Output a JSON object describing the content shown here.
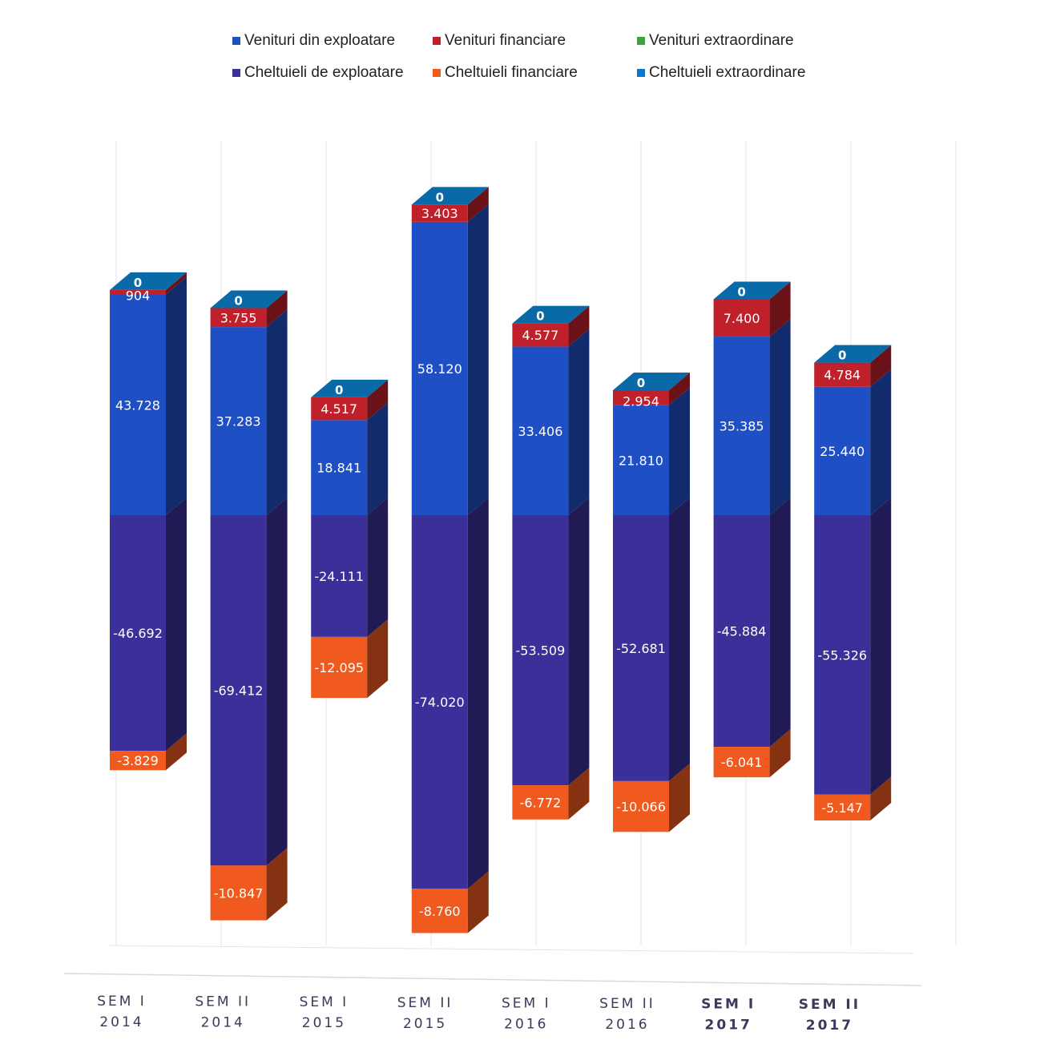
{
  "chart_data": {
    "type": "bar",
    "stacked": true,
    "view": "3d",
    "categories": [
      "SEM I 2014",
      "SEM II 2014",
      "SEM I 2015",
      "SEM II 2015",
      "SEM I 2016",
      "SEM II 2016",
      "SEM I 2017",
      "SEM II 2017"
    ],
    "category_lines": [
      [
        "SEM I",
        "2014"
      ],
      [
        "SEM II",
        "2014"
      ],
      [
        "SEM I",
        "2015"
      ],
      [
        "SEM II",
        "2015"
      ],
      [
        "SEM I",
        "2016"
      ],
      [
        "SEM II",
        "2016"
      ],
      [
        "SEM I",
        "2017"
      ],
      [
        "SEM II",
        "2017"
      ]
    ],
    "series": [
      {
        "name": "Venituri din exploatare",
        "color": "#1f4fc4",
        "values": [
          43728,
          37283,
          18841,
          58120,
          33406,
          21810,
          35385,
          25440
        ],
        "labels": [
          "43.728",
          "37.283",
          "18.841",
          "58.120",
          "33.406",
          "21.810",
          "35.385",
          "25.440"
        ]
      },
      {
        "name": "Venituri financiare",
        "color": "#c0202a",
        "values": [
          904,
          3755,
          4517,
          3403,
          4577,
          2954,
          7400,
          4784
        ],
        "labels": [
          "904",
          "3.755",
          "4.517",
          "3.403",
          "4.577",
          "2.954",
          "7.400",
          "4.784"
        ]
      },
      {
        "name": "Venituri extraordinare",
        "color": "#3ea23e",
        "values": [
          0,
          0,
          0,
          0,
          0,
          0,
          0,
          0
        ],
        "labels": [
          "0",
          "0",
          "0",
          "0",
          "0",
          "0",
          "0",
          "0"
        ]
      },
      {
        "name": "Cheltuieli de exploatare",
        "color": "#3b2f9a",
        "values": [
          -46692,
          -69412,
          -24111,
          -74020,
          -53509,
          -52681,
          -45884,
          -55326
        ],
        "labels": [
          "-46.692",
          "-69.412",
          "-24.111",
          "-74.020",
          "-53.509",
          "-52.681",
          "-45.884",
          "-55.326"
        ]
      },
      {
        "name": "Cheltuieli financiare",
        "color": "#f05a1e",
        "values": [
          -3829,
          -10847,
          -12095,
          -8760,
          -6772,
          -10066,
          -6041,
          -5147
        ],
        "labels": [
          "-3.829",
          "-10.847",
          "-12.095",
          "-8.760",
          "-6.772",
          "-10.066",
          "-6.041",
          "-5.147"
        ]
      },
      {
        "name": "Cheltuieli extraordinare",
        "color": "#0a78c8",
        "values": [
          0,
          0,
          0,
          0,
          0,
          0,
          0,
          0
        ],
        "labels": []
      }
    ],
    "legend_position": "top",
    "grid": true
  }
}
